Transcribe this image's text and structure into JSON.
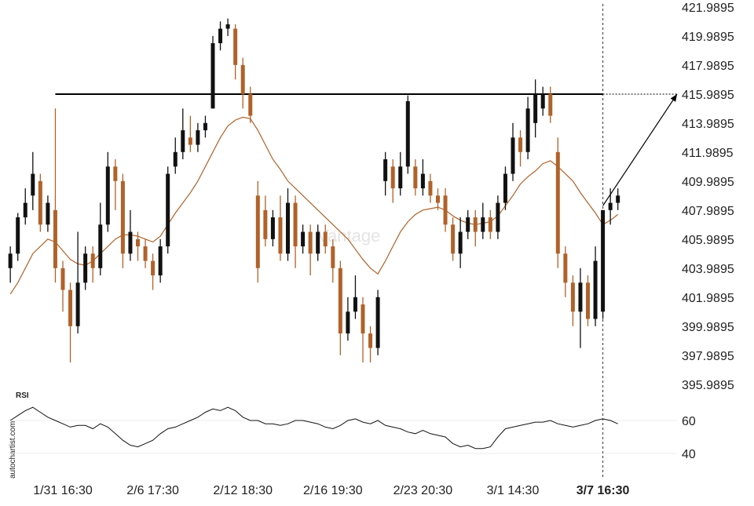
{
  "chart_data": {
    "type": "candlestick",
    "categories": [
      null,
      null,
      null,
      null,
      null,
      null,
      null,
      "1/31 16:30",
      null,
      null,
      null,
      null,
      null,
      null,
      null,
      null,
      null,
      null,
      null,
      "2/6 17:30",
      null,
      null,
      null,
      null,
      null,
      null,
      null,
      null,
      null,
      null,
      null,
      "2/12 18:30",
      null,
      null,
      null,
      null,
      null,
      null,
      null,
      null,
      null,
      null,
      null,
      "2/16 19:30",
      null,
      null,
      null,
      null,
      null,
      null,
      null,
      null,
      null,
      null,
      null,
      "2/23 20:30",
      null,
      null,
      null,
      null,
      null,
      null,
      null,
      null,
      null,
      null,
      null,
      "3/1 14:30",
      null,
      null,
      null,
      null,
      null,
      null,
      null,
      null,
      null,
      null,
      null,
      "3/7 16:30",
      null,
      null
    ],
    "ohlc": [
      [
        404,
        405.5,
        403,
        405
      ],
      [
        405,
        407.8,
        404.5,
        407.5
      ],
      [
        407.5,
        409.5,
        407,
        408.5
      ],
      [
        409,
        412,
        408,
        410.5
      ],
      [
        410,
        410.5,
        406.5,
        407
      ],
      [
        407,
        409,
        406.5,
        408.5
      ],
      [
        408,
        415,
        403,
        404
      ],
      [
        404,
        404.5,
        401,
        402.5
      ],
      [
        402.5,
        403,
        397.5,
        400
      ],
      [
        400,
        406.5,
        399.5,
        403
      ],
      [
        403,
        405.5,
        402.5,
        405
      ],
      [
        405,
        405.5,
        403,
        404
      ],
      [
        404,
        408.5,
        403.5,
        407
      ],
      [
        407,
        412,
        406.5,
        411
      ],
      [
        411,
        411.5,
        408,
        410
      ],
      [
        410,
        410.5,
        404,
        405
      ],
      [
        405,
        408,
        404.5,
        406.5
      ],
      [
        406,
        406.5,
        404.5,
        405.5
      ],
      [
        405.5,
        406,
        404,
        404.5
      ],
      [
        404.5,
        405,
        402.5,
        403.5
      ],
      [
        403.5,
        406,
        403,
        405.5
      ],
      [
        405.5,
        411,
        405,
        410.5
      ],
      [
        411,
        413,
        410.5,
        412
      ],
      [
        412,
        415,
        411.5,
        413.5
      ],
      [
        413,
        414.5,
        412,
        412.5
      ],
      [
        412.5,
        414,
        412,
        413.5
      ],
      [
        413.5,
        414.5,
        413,
        414
      ],
      [
        415,
        420,
        415,
        419.5
      ],
      [
        419.5,
        421,
        419,
        420.5
      ],
      [
        420.5,
        421.2,
        420,
        420.8
      ],
      [
        420.5,
        420.8,
        417,
        418
      ],
      [
        418,
        418.5,
        415,
        416
      ],
      [
        416,
        416.5,
        414,
        414.5
      ],
      [
        409,
        410,
        403,
        404
      ],
      [
        408,
        409,
        405.5,
        406
      ],
      [
        406,
        408,
        405.5,
        407.5
      ],
      [
        407.5,
        409,
        404.5,
        405
      ],
      [
        405,
        409.5,
        404.5,
        408.5
      ],
      [
        408.5,
        409,
        404,
        405.5
      ],
      [
        405.5,
        407,
        405,
        406.5
      ],
      [
        406.5,
        407,
        403.5,
        405
      ],
      [
        405,
        407,
        404.5,
        406.5
      ],
      [
        406.5,
        407,
        405,
        405.5
      ],
      [
        405.5,
        406,
        403,
        404
      ],
      [
        404,
        404.5,
        398,
        399.5
      ],
      [
        399.5,
        402,
        399,
        401
      ],
      [
        401,
        403.5,
        400.5,
        402
      ],
      [
        401.5,
        402,
        397.5,
        399.5
      ],
      [
        399.5,
        400,
        397.5,
        398.5
      ],
      [
        398.5,
        402.5,
        398,
        402
      ],
      [
        410,
        412,
        409,
        411.5
      ],
      [
        411,
        411.5,
        408.5,
        409.5
      ],
      [
        409.5,
        412,
        409,
        411
      ],
      [
        411,
        415.9,
        410.5,
        415.5
      ],
      [
        411,
        411.5,
        409,
        409.5
      ],
      [
        409.5,
        411.5,
        409,
        410.5
      ],
      [
        410,
        410.5,
        408.5,
        409
      ],
      [
        409,
        409.5,
        408,
        408.5
      ],
      [
        409,
        409.5,
        406.5,
        407
      ],
      [
        407,
        407.5,
        404.5,
        405
      ],
      [
        405,
        407.5,
        404,
        406.5
      ],
      [
        406.5,
        408,
        406,
        407.5
      ],
      [
        407.5,
        408,
        405.5,
        406.5
      ],
      [
        406.5,
        408.5,
        406,
        407.5
      ],
      [
        407.5,
        408,
        406,
        406.5
      ],
      [
        406.5,
        409,
        406,
        408.5
      ],
      [
        408.5,
        411,
        408,
        410.5
      ],
      [
        410.5,
        414,
        410,
        413
      ],
      [
        413,
        413.5,
        411,
        412
      ],
      [
        412,
        415.8,
        411.5,
        415
      ],
      [
        414,
        417,
        413,
        416
      ],
      [
        415,
        416.5,
        414.5,
        416
      ],
      [
        416,
        416.5,
        414,
        414.5
      ],
      [
        412,
        413,
        404,
        405
      ],
      [
        405,
        405.5,
        402,
        403
      ],
      [
        403,
        403.5,
        400,
        401
      ],
      [
        401,
        404,
        398.5,
        403
      ],
      [
        403,
        403.5,
        400,
        400.5
      ],
      [
        400.5,
        405.5,
        400,
        404.5
      ],
      [
        401,
        408,
        400.5,
        408
      ],
      [
        408,
        409.5,
        407,
        408.5
      ],
      [
        408.5,
        409.5,
        408,
        409
      ]
    ],
    "ma": [
      402.2,
      403,
      404,
      405,
      405.5,
      406,
      405.8,
      405.2,
      404.6,
      404.3,
      404.2,
      404.5,
      405,
      405.5,
      406,
      406.3,
      406.3,
      406.2,
      406,
      405.8,
      406.2,
      407,
      407.8,
      408.5,
      409.2,
      410,
      411,
      412,
      413,
      413.8,
      414.2,
      414.4,
      414.3,
      413.5,
      412.5,
      411.5,
      410.8,
      410,
      409.5,
      409,
      408.5,
      408,
      407.5,
      407,
      406.5,
      406,
      405.3,
      404.6,
      404,
      403.6,
      404.5,
      405.5,
      406.5,
      407.2,
      407.7,
      408,
      408.1,
      408.2,
      408,
      407.6,
      407.3,
      407.1,
      407,
      407.1,
      407.2,
      407.6,
      408.3,
      409,
      409.8,
      410.3,
      410.7,
      411.2,
      411.4,
      411,
      410.5,
      410,
      409.2,
      408.5,
      407.8,
      407,
      407.3,
      407.7
    ],
    "up_color": "#111111",
    "down_color": "#b0622a",
    "ma_color": "#b0622a",
    "ylim": [
      395.9895,
      421.9895
    ],
    "yticks": [
      421.9895,
      419.9895,
      417.9895,
      415.9895,
      413.9895,
      411.9895,
      409.9895,
      407.9895,
      405.9895,
      403.9895,
      401.9895,
      399.9895,
      397.9895,
      395.9895
    ],
    "resistance": 415.9895,
    "forecast": [
      408.3,
      415.9895
    ],
    "x_marker": "3/7 16:30",
    "watermark": "Vantage",
    "source": "autochartist.com",
    "rsi": {
      "label": "RSI",
      "ylim": [
        34,
        77
      ],
      "yticks": [
        60,
        40
      ],
      "values": [
        60,
        63,
        66,
        68,
        65,
        62,
        60,
        58,
        56,
        57,
        57,
        55,
        58,
        56,
        52,
        48,
        45,
        44,
        46,
        48,
        52,
        55,
        56,
        58,
        60,
        62,
        65,
        67,
        66,
        68,
        66,
        62,
        60,
        60,
        58,
        58,
        57,
        58,
        60,
        60,
        59,
        58,
        56,
        55,
        57,
        60,
        61,
        59,
        58,
        60,
        57,
        56,
        55,
        53,
        52,
        54,
        52,
        51,
        50,
        46,
        44,
        45,
        43,
        43,
        44,
        50,
        55,
        56,
        57,
        58,
        59,
        59,
        60,
        58,
        57,
        56,
        57,
        58,
        60,
        61,
        60,
        58
      ]
    }
  }
}
